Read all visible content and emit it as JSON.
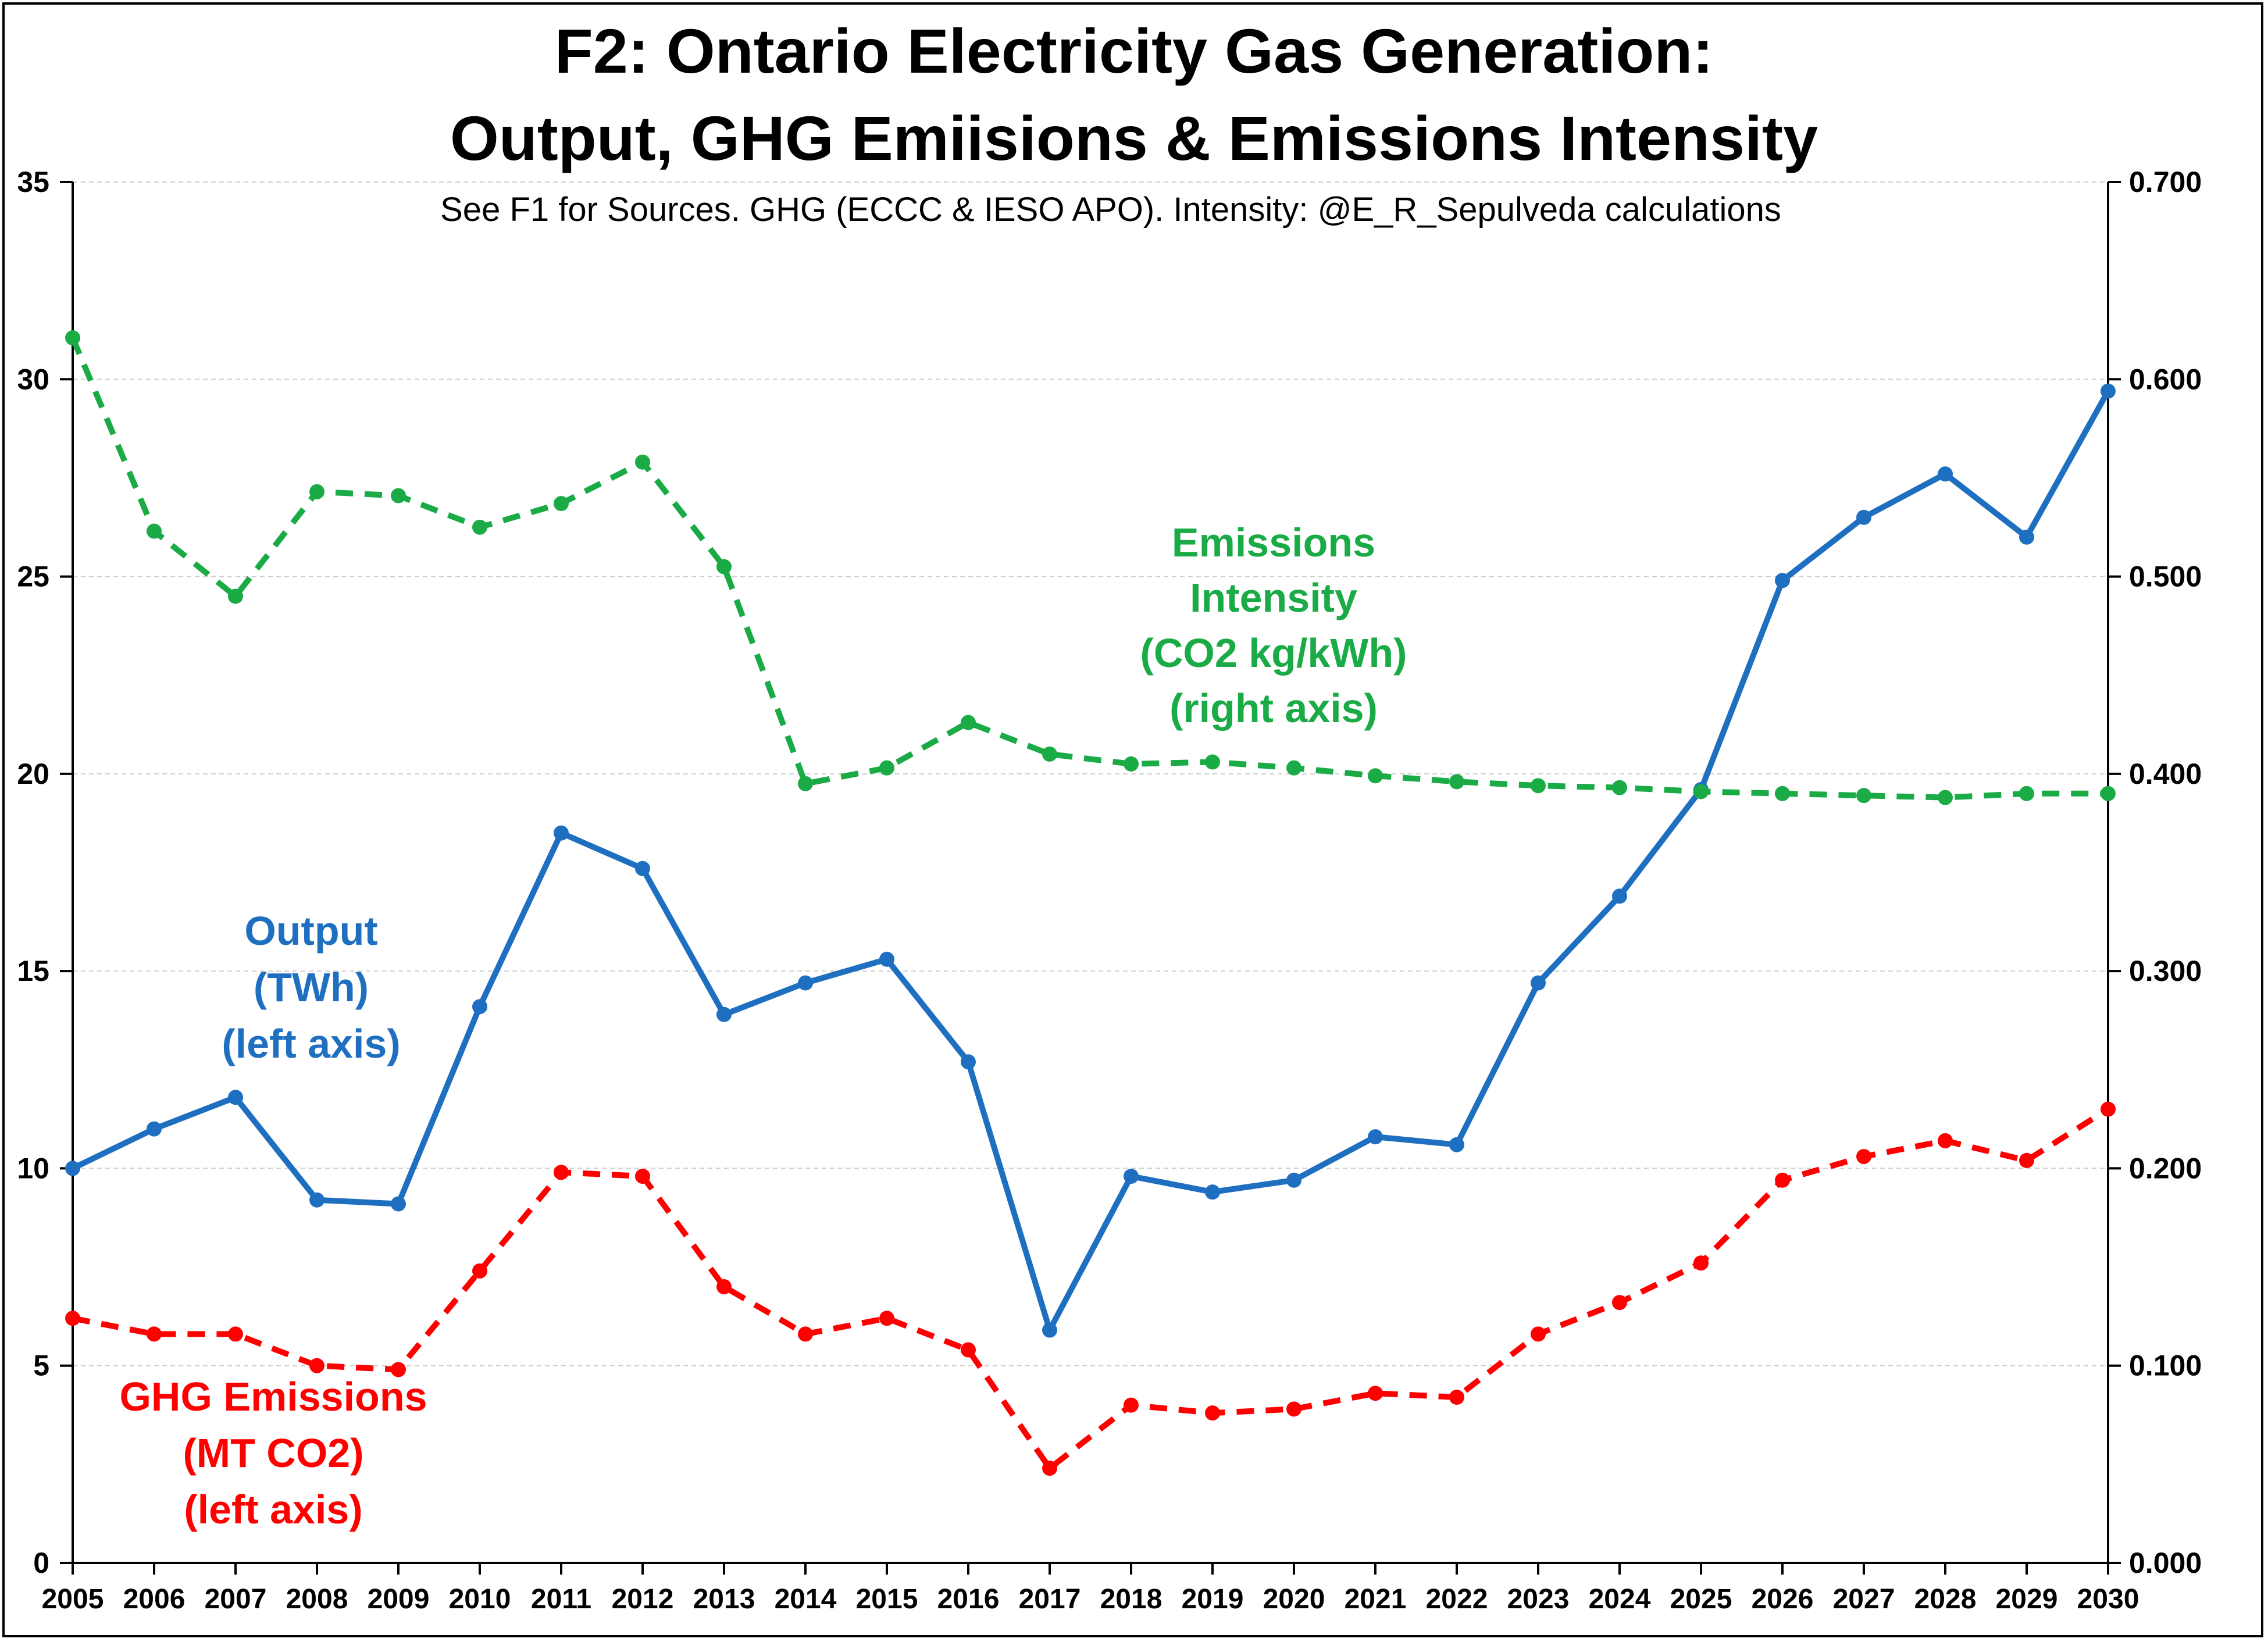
{
  "chart_data": {
    "type": "line",
    "title_line1": "F2: Ontario Electricity Gas Generation:",
    "title_line2": "Output, GHG Emiisions & Emissions Intensity",
    "subtitle": "See F1 for Sources. GHG (ECCC & IESO APO). Intensity: @E_R_Sepulveda calculations",
    "x": [
      2005,
      2006,
      2007,
      2008,
      2009,
      2010,
      2011,
      2012,
      2013,
      2014,
      2015,
      2016,
      2017,
      2018,
      2019,
      2020,
      2021,
      2022,
      2023,
      2024,
      2025,
      2026,
      2027,
      2028,
      2029,
      2030
    ],
    "y_left": {
      "range": [
        0,
        35
      ],
      "ticks": [
        "0",
        "5",
        "10",
        "15",
        "20",
        "25",
        "30",
        "35"
      ]
    },
    "y_right": {
      "range": [
        0,
        0.7
      ],
      "ticks": [
        "0.000",
        "0.100",
        "0.200",
        "0.300",
        "0.400",
        "0.500",
        "0.600",
        "0.700"
      ]
    },
    "grid": true,
    "series": [
      {
        "id": "output",
        "axis": "left",
        "style": "solid",
        "color": "#1f6fc1",
        "label_lines": [
          "Output",
          "(TWh)",
          "(left axis)"
        ],
        "values": [
          10.0,
          11.0,
          11.8,
          9.2,
          9.1,
          14.1,
          18.5,
          17.6,
          13.9,
          14.7,
          15.3,
          12.7,
          5.9,
          9.8,
          9.4,
          9.7,
          10.8,
          10.6,
          14.7,
          16.9,
          19.6,
          24.9,
          26.5,
          27.6,
          26.0,
          29.7
        ]
      },
      {
        "id": "ghg",
        "axis": "left",
        "style": "dashed",
        "color": "#ff0000",
        "label_lines": [
          "GHG Emissions",
          "(MT CO2)",
          "(left axis)"
        ],
        "values": [
          6.2,
          5.8,
          5.8,
          5.0,
          4.9,
          7.4,
          9.9,
          9.8,
          7.0,
          5.8,
          6.2,
          5.4,
          2.4,
          4.0,
          3.8,
          3.9,
          4.3,
          4.2,
          5.8,
          6.6,
          7.6,
          9.7,
          10.3,
          10.7,
          10.2,
          11.5
        ]
      },
      {
        "id": "intensity",
        "axis": "right",
        "style": "dashed",
        "color": "#1aab46",
        "label_lines": [
          "Emissions",
          "Intensity",
          "(CO2 kg/kWh)",
          "(right axis)"
        ],
        "values": [
          0.621,
          0.523,
          0.49,
          0.543,
          0.541,
          0.525,
          0.537,
          0.558,
          0.505,
          0.395,
          0.403,
          0.426,
          0.41,
          0.405,
          0.406,
          0.403,
          0.399,
          0.396,
          0.394,
          0.393,
          0.391,
          0.39,
          0.389,
          0.388,
          0.39,
          0.39
        ]
      }
    ]
  }
}
